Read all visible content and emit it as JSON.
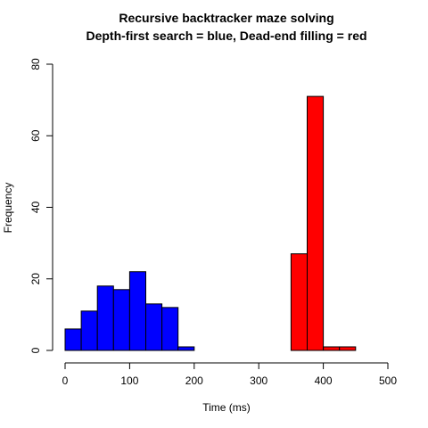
{
  "chart_data": {
    "type": "bar",
    "title_line1": "Recursive backtracker maze solving",
    "title_line2": "Depth-first search = blue, Dead-end filling = red",
    "xlabel": "Time (ms)",
    "ylabel": "Frequency",
    "xlim": [
      0,
      500
    ],
    "ylim": [
      0,
      80
    ],
    "x_ticks": [
      "0",
      "100",
      "200",
      "300",
      "400",
      "500"
    ],
    "y_ticks": [
      "0",
      "20",
      "40",
      "60",
      "80"
    ],
    "grid": false,
    "bin_width": 25,
    "series": [
      {
        "color": "#0000ff",
        "bin_starts": [
          0,
          25,
          50,
          75,
          100,
          125,
          150,
          175
        ],
        "values": [
          6,
          11,
          18,
          17,
          22,
          13,
          12,
          1
        ]
      },
      {
        "color": "#ff0000",
        "bin_starts": [
          350,
          375,
          400,
          425
        ],
        "values": [
          27,
          71,
          1,
          1
        ]
      }
    ]
  }
}
